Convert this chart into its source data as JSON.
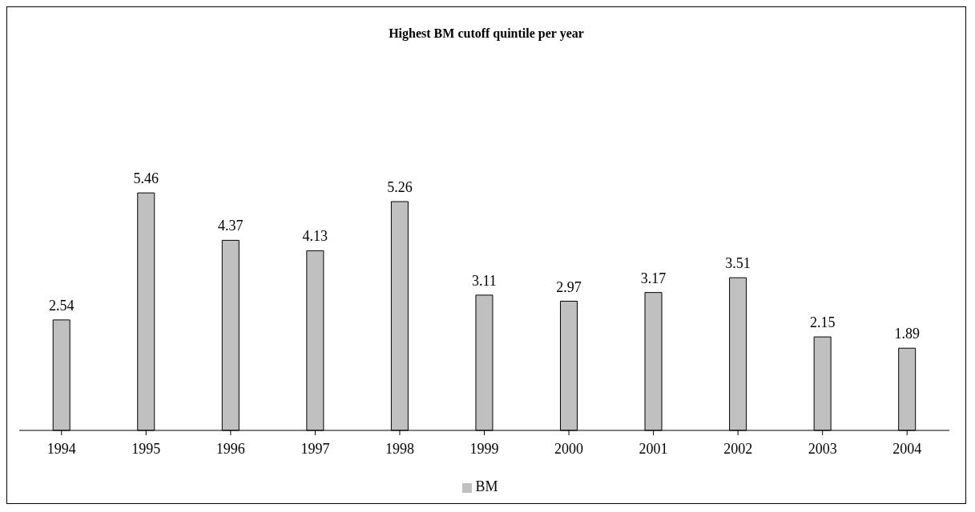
{
  "chart_data": {
    "type": "bar",
    "title": "Highest BM cutoff quintile per year",
    "categories": [
      "1994",
      "1995",
      "1996",
      "1997",
      "1998",
      "1999",
      "2000",
      "2001",
      "2002",
      "2003",
      "2004"
    ],
    "series": [
      {
        "name": "BM",
        "color": "#c0c0c0",
        "values": [
          2.54,
          5.46,
          4.37,
          4.13,
          5.26,
          3.11,
          2.97,
          3.17,
          3.51,
          2.15,
          1.89
        ]
      }
    ],
    "data_labels": true,
    "legend": "bottom",
    "grid": false
  }
}
